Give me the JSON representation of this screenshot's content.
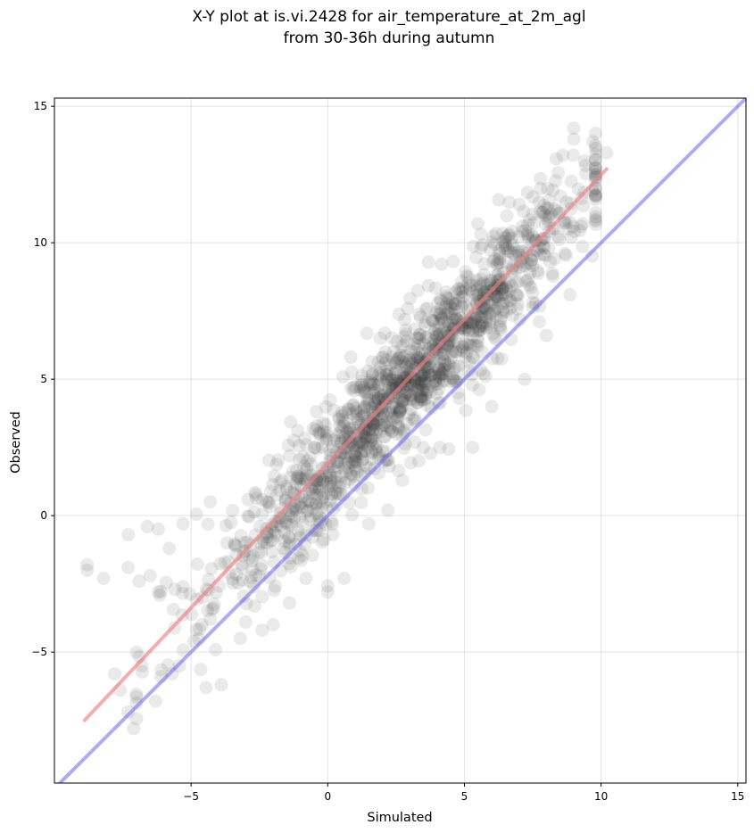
{
  "chart_data": {
    "type": "scatter",
    "title_lines": [
      "X-Y plot at is.vi.2428 for air_temperature_at_2m_agl",
      "from 30-36h during autumn"
    ],
    "xlabel": "Simulated",
    "ylabel": "Observed",
    "xlim": [
      -10,
      15.3
    ],
    "ylim": [
      -9.8,
      15.3
    ],
    "xticks": [
      -5,
      0,
      5,
      10,
      15
    ],
    "yticks": [
      -5,
      0,
      5,
      10,
      15
    ],
    "tick_labels": {
      "x": [
        "−5",
        "0",
        "5",
        "10",
        "15"
      ],
      "y": [
        "−5",
        "0",
        "5",
        "10",
        "15"
      ]
    },
    "grid": true,
    "colors": {
      "points": "#333333",
      "fit_line": "#f08080",
      "identity_line": "#6666ee"
    },
    "fit_line": {
      "x": [
        -8.9,
        10.2
      ],
      "y": [
        -7.5,
        12.7
      ]
    },
    "identity_line": {
      "x": [
        -10,
        15.3
      ],
      "y": [
        -10,
        15.3
      ]
    },
    "point_generation": {
      "count": 1400,
      "x_center": 2.8,
      "x_spread": 3.4,
      "slope": 1.06,
      "intercept": 1.75,
      "residual_sd": 1.15
    },
    "outlier_points": [
      [
        -8.8,
        -1.8
      ],
      [
        -8.8,
        -2.0
      ],
      [
        -8.2,
        -2.3
      ],
      [
        -7.3,
        -0.7
      ],
      [
        -6.6,
        -0.4
      ],
      [
        -6.2,
        -0.5
      ],
      [
        -5.8,
        -1.2
      ],
      [
        -5.3,
        -0.3
      ],
      [
        -4.8,
        0.05
      ],
      [
        -4.3,
        0.5
      ],
      [
        -7.3,
        -1.9
      ],
      [
        -6.9,
        -2.4
      ],
      [
        -6.5,
        -2.2
      ],
      [
        -6.2,
        -2.8
      ],
      [
        -5.6,
        -2.7
      ],
      [
        -7.8,
        -5.8
      ],
      [
        -7.6,
        -6.4
      ],
      [
        -7.3,
        -7.2
      ],
      [
        -7.1,
        -7.8
      ],
      [
        -7.0,
        -5.0
      ],
      [
        -6.8,
        -5.5
      ],
      [
        -6.3,
        -6.8
      ],
      [
        -6.1,
        -5.9
      ],
      [
        -5.3,
        -2.6
      ],
      [
        -4.9,
        -4.6
      ],
      [
        -4.6,
        -4.0
      ],
      [
        -4.3,
        -3.8
      ],
      [
        -3.9,
        -6.2
      ],
      [
        -3.6,
        -2.1
      ],
      [
        -3.2,
        -4.5
      ],
      [
        -3.0,
        -3.9
      ],
      [
        -2.4,
        -4.2
      ],
      [
        -2.0,
        -4.0
      ],
      [
        -1.4,
        -3.2
      ],
      [
        -0.8,
        -2.3
      ],
      [
        0.0,
        -2.8
      ],
      [
        0.6,
        -2.3
      ],
      [
        1.5,
        -0.3
      ],
      [
        2.2,
        0.2
      ],
      [
        4.1,
        2.5
      ],
      [
        5.3,
        2.5
      ],
      [
        6.0,
        4.0
      ],
      [
        7.2,
        5.0
      ],
      [
        8.0,
        6.6
      ],
      [
        8.6,
        13.2
      ],
      [
        9.0,
        13.8
      ],
      [
        9.0,
        14.2
      ],
      [
        9.7,
        13.7
      ],
      [
        10.2,
        13.3
      ],
      [
        9.4,
        13.0
      ]
    ]
  }
}
